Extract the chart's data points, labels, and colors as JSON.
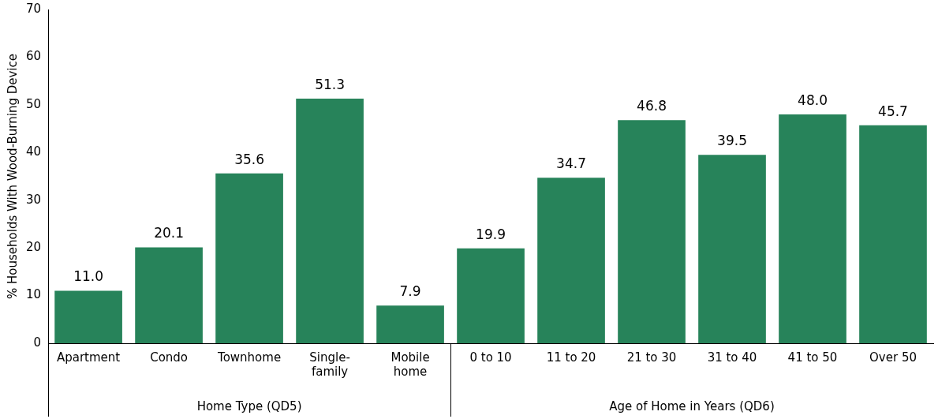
{
  "chart_data": {
    "type": "bar",
    "ylabel": "% Households With Wood-Burning Device",
    "categories": [
      "Apartment",
      "Condo",
      "Townhome",
      "Single-family",
      "Mobile home",
      "0 to 10",
      "11 to 20",
      "21 to 30",
      "31 to 40",
      "41 to 50",
      "Over 50"
    ],
    "values": [
      11.0,
      20.1,
      35.6,
      51.3,
      7.9,
      19.9,
      34.7,
      46.8,
      39.5,
      48.0,
      45.7
    ],
    "value_labels": [
      "11.0",
      "20.1",
      "35.6",
      "51.3",
      "7.9",
      "19.9",
      "34.7",
      "46.8",
      "39.5",
      "48.0",
      "45.7"
    ],
    "color": "#27835a",
    "ylim": [
      0,
      70
    ],
    "yticks": [
      0,
      10,
      20,
      30,
      40,
      50,
      60,
      70
    ],
    "grid": false,
    "legend": false,
    "annotations": [
      "Home Type (QD5)",
      "Age of Home in Years (QD6)"
    ]
  }
}
